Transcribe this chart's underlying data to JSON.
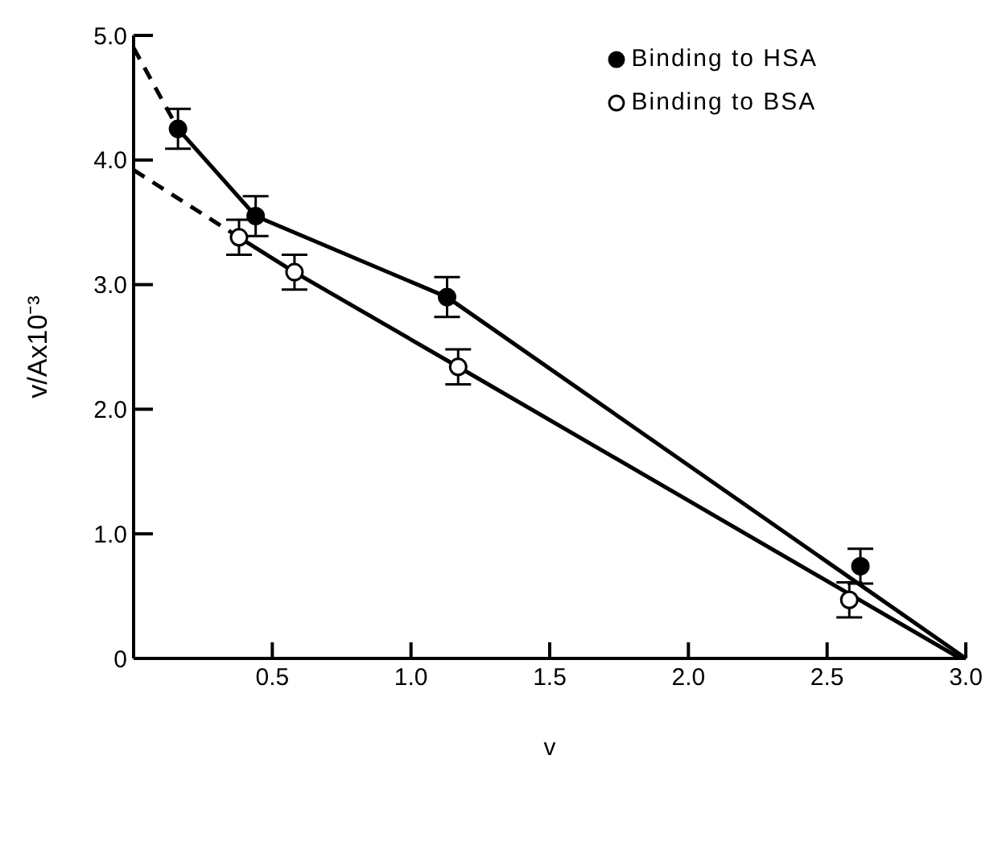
{
  "chart_data": {
    "type": "scatter",
    "xlabel": "v",
    "ylabel": "v/Ax10⁻³",
    "xlim": [
      0,
      3.0
    ],
    "ylim": [
      0,
      5.0
    ],
    "xticks": [
      0.5,
      {
        "value": 1,
        "label": "1.0"
      },
      1.5,
      {
        "value": 2,
        "label": "2.0"
      },
      2.5,
      {
        "value": 3,
        "label": "3.0"
      }
    ],
    "yticks": [
      0,
      {
        "value": 1,
        "label": "1.0"
      },
      {
        "value": 2,
        "label": "2.0"
      },
      {
        "value": 3,
        "label": "3.0"
      },
      {
        "value": 4,
        "label": "4.0"
      },
      {
        "value": 5,
        "label": "5.0"
      }
    ],
    "grid": false,
    "legend": "top right",
    "series": [
      {
        "name": "Binding to HSA",
        "color": "#000000",
        "marker": "circle",
        "x": [
          0.16,
          0.44,
          1.13,
          2.62
        ],
        "values": [
          4.25,
          3.55,
          2.9,
          0.74
        ],
        "errors": [
          0.16,
          0.16,
          0.16,
          0.14
        ]
      },
      {
        "name": "Binding to BSA",
        "color": "#ffffff",
        "marker": "circle",
        "x": [
          0.38,
          0.58,
          1.17,
          2.58
        ],
        "values": [
          3.38,
          3.1,
          2.34,
          0.47
        ],
        "errors": [
          0.14,
          0.14,
          0.14,
          0.14
        ]
      },
      {
        "type": "line",
        "color": "#000000",
        "marker": "none",
        "line_style": "solid",
        "x": [
          0.16,
          0.44,
          1.13,
          3.0
        ],
        "values": [
          4.25,
          3.55,
          2.9,
          0
        ]
      },
      {
        "type": "line",
        "color": "#000000",
        "marker": "none",
        "line_style": "solid",
        "x": [
          0.38,
          0.58,
          1.17,
          2.98
        ],
        "values": [
          3.38,
          3.1,
          2.34,
          0
        ]
      },
      {
        "type": "line",
        "color": "#000000",
        "marker": "none",
        "line_style": "dashed",
        "x": [
          0,
          0.16
        ],
        "values": [
          4.9,
          4.25
        ]
      },
      {
        "type": "line",
        "color": "#000000",
        "marker": "none",
        "line_style": "dashed",
        "x": [
          0,
          0.38
        ],
        "values": [
          3.92,
          3.38
        ]
      }
    ]
  }
}
